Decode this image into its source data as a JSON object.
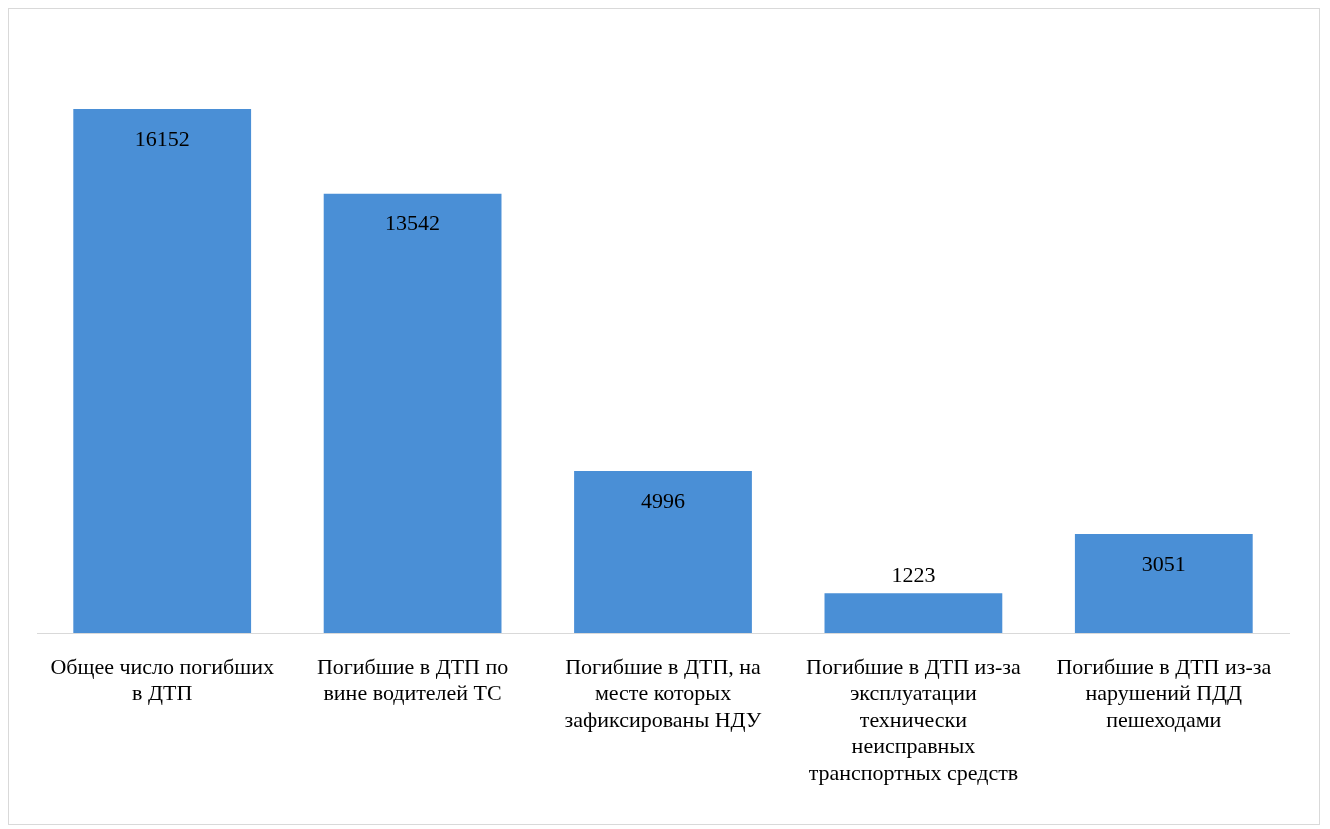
{
  "chart_data": {
    "type": "bar",
    "categories": [
      "Общее число погибших в ДТП",
      "Погибшие в ДТП по вине водителей ТС",
      "Погибшие в ДТП, на месте которых зафиксированы НДУ",
      "Погибшие в ДТП из-за эксплуатации технически неисправных транспортных средств",
      "Погибшие в ДТП из-за нарушений ПДД пешеходами"
    ],
    "values": [
      16152,
      13542,
      4996,
      1223,
      3051
    ],
    "color": "#4a8fd6",
    "data_labels": true,
    "grid": false,
    "legend": false
  }
}
